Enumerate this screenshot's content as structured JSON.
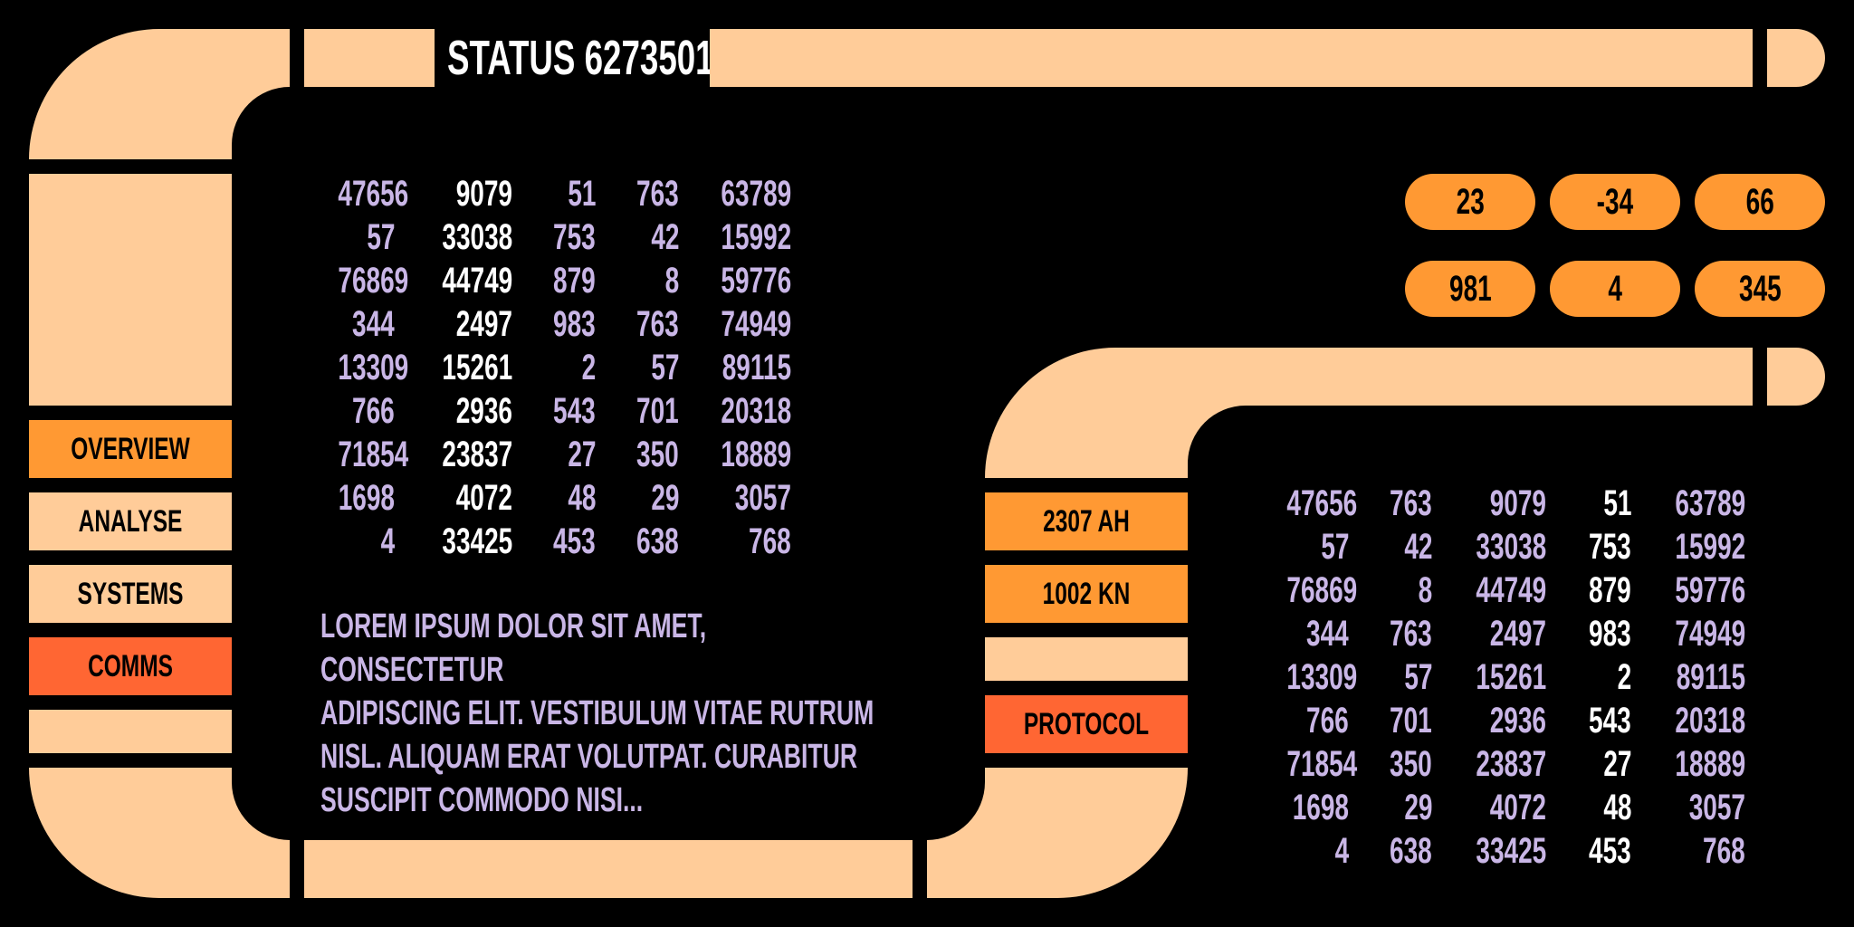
{
  "header": {
    "title": "STATUS 6273501"
  },
  "left_nav": {
    "overview": "OVERVIEW",
    "analyse": "ANALYSE",
    "systems": "SYSTEMS",
    "comms": "COMMS"
  },
  "mid_nav": {
    "item1": "2307 AH",
    "item2": "1002 KN",
    "protocol": "PROTOCOL"
  },
  "pills": [
    "23",
    "-34",
    "66",
    "981",
    "4",
    "345"
  ],
  "table_main": {
    "rows": [
      [
        "47656",
        "9079",
        "51",
        "763",
        "63789"
      ],
      [
        "57",
        "33038",
        "753",
        "42",
        "15992"
      ],
      [
        "76869",
        "44749",
        "879",
        "8",
        "59776"
      ],
      [
        "344",
        "2497",
        "983",
        "763",
        "74949"
      ],
      [
        "13309",
        "15261",
        "2",
        "57",
        "89115"
      ],
      [
        "766",
        "2936",
        "543",
        "701",
        "20318"
      ],
      [
        "71854",
        "23837",
        "27",
        "350",
        "18889"
      ],
      [
        "1698",
        "4072",
        "48",
        "29",
        "3057"
      ],
      [
        "4",
        "33425",
        "453",
        "638",
        "768"
      ]
    ]
  },
  "table_secondary": {
    "rows": [
      [
        "47656",
        "763",
        "9079",
        "51",
        "63789"
      ],
      [
        "57",
        "42",
        "33038",
        "753",
        "15992"
      ],
      [
        "76869",
        "8",
        "44749",
        "879",
        "59776"
      ],
      [
        "344",
        "763",
        "2497",
        "983",
        "74949"
      ],
      [
        "13309",
        "57",
        "15261",
        "2",
        "89115"
      ],
      [
        "766",
        "701",
        "2936",
        "543",
        "20318"
      ],
      [
        "71854",
        "350",
        "23837",
        "27",
        "18889"
      ],
      [
        "1698",
        "29",
        "4072",
        "48",
        "3057"
      ],
      [
        "4",
        "638",
        "33425",
        "453",
        "768"
      ]
    ]
  },
  "paragraph": {
    "line1": "LOREM IPSUM DOLOR SIT AMET, CONSECTETUR",
    "line2": "ADIPISCING ELIT. VESTIBULUM VITAE RUTRUM",
    "line3": "NISL. ALIQUAM ERAT VOLUTPAT. CURABITUR",
    "line4": "SUSCIPIT COMMODO NISI..."
  },
  "colors": {
    "peach": "#ffcc99",
    "orange": "#ff9933",
    "red": "#ff6633",
    "lavender": "#c9b6e6"
  }
}
